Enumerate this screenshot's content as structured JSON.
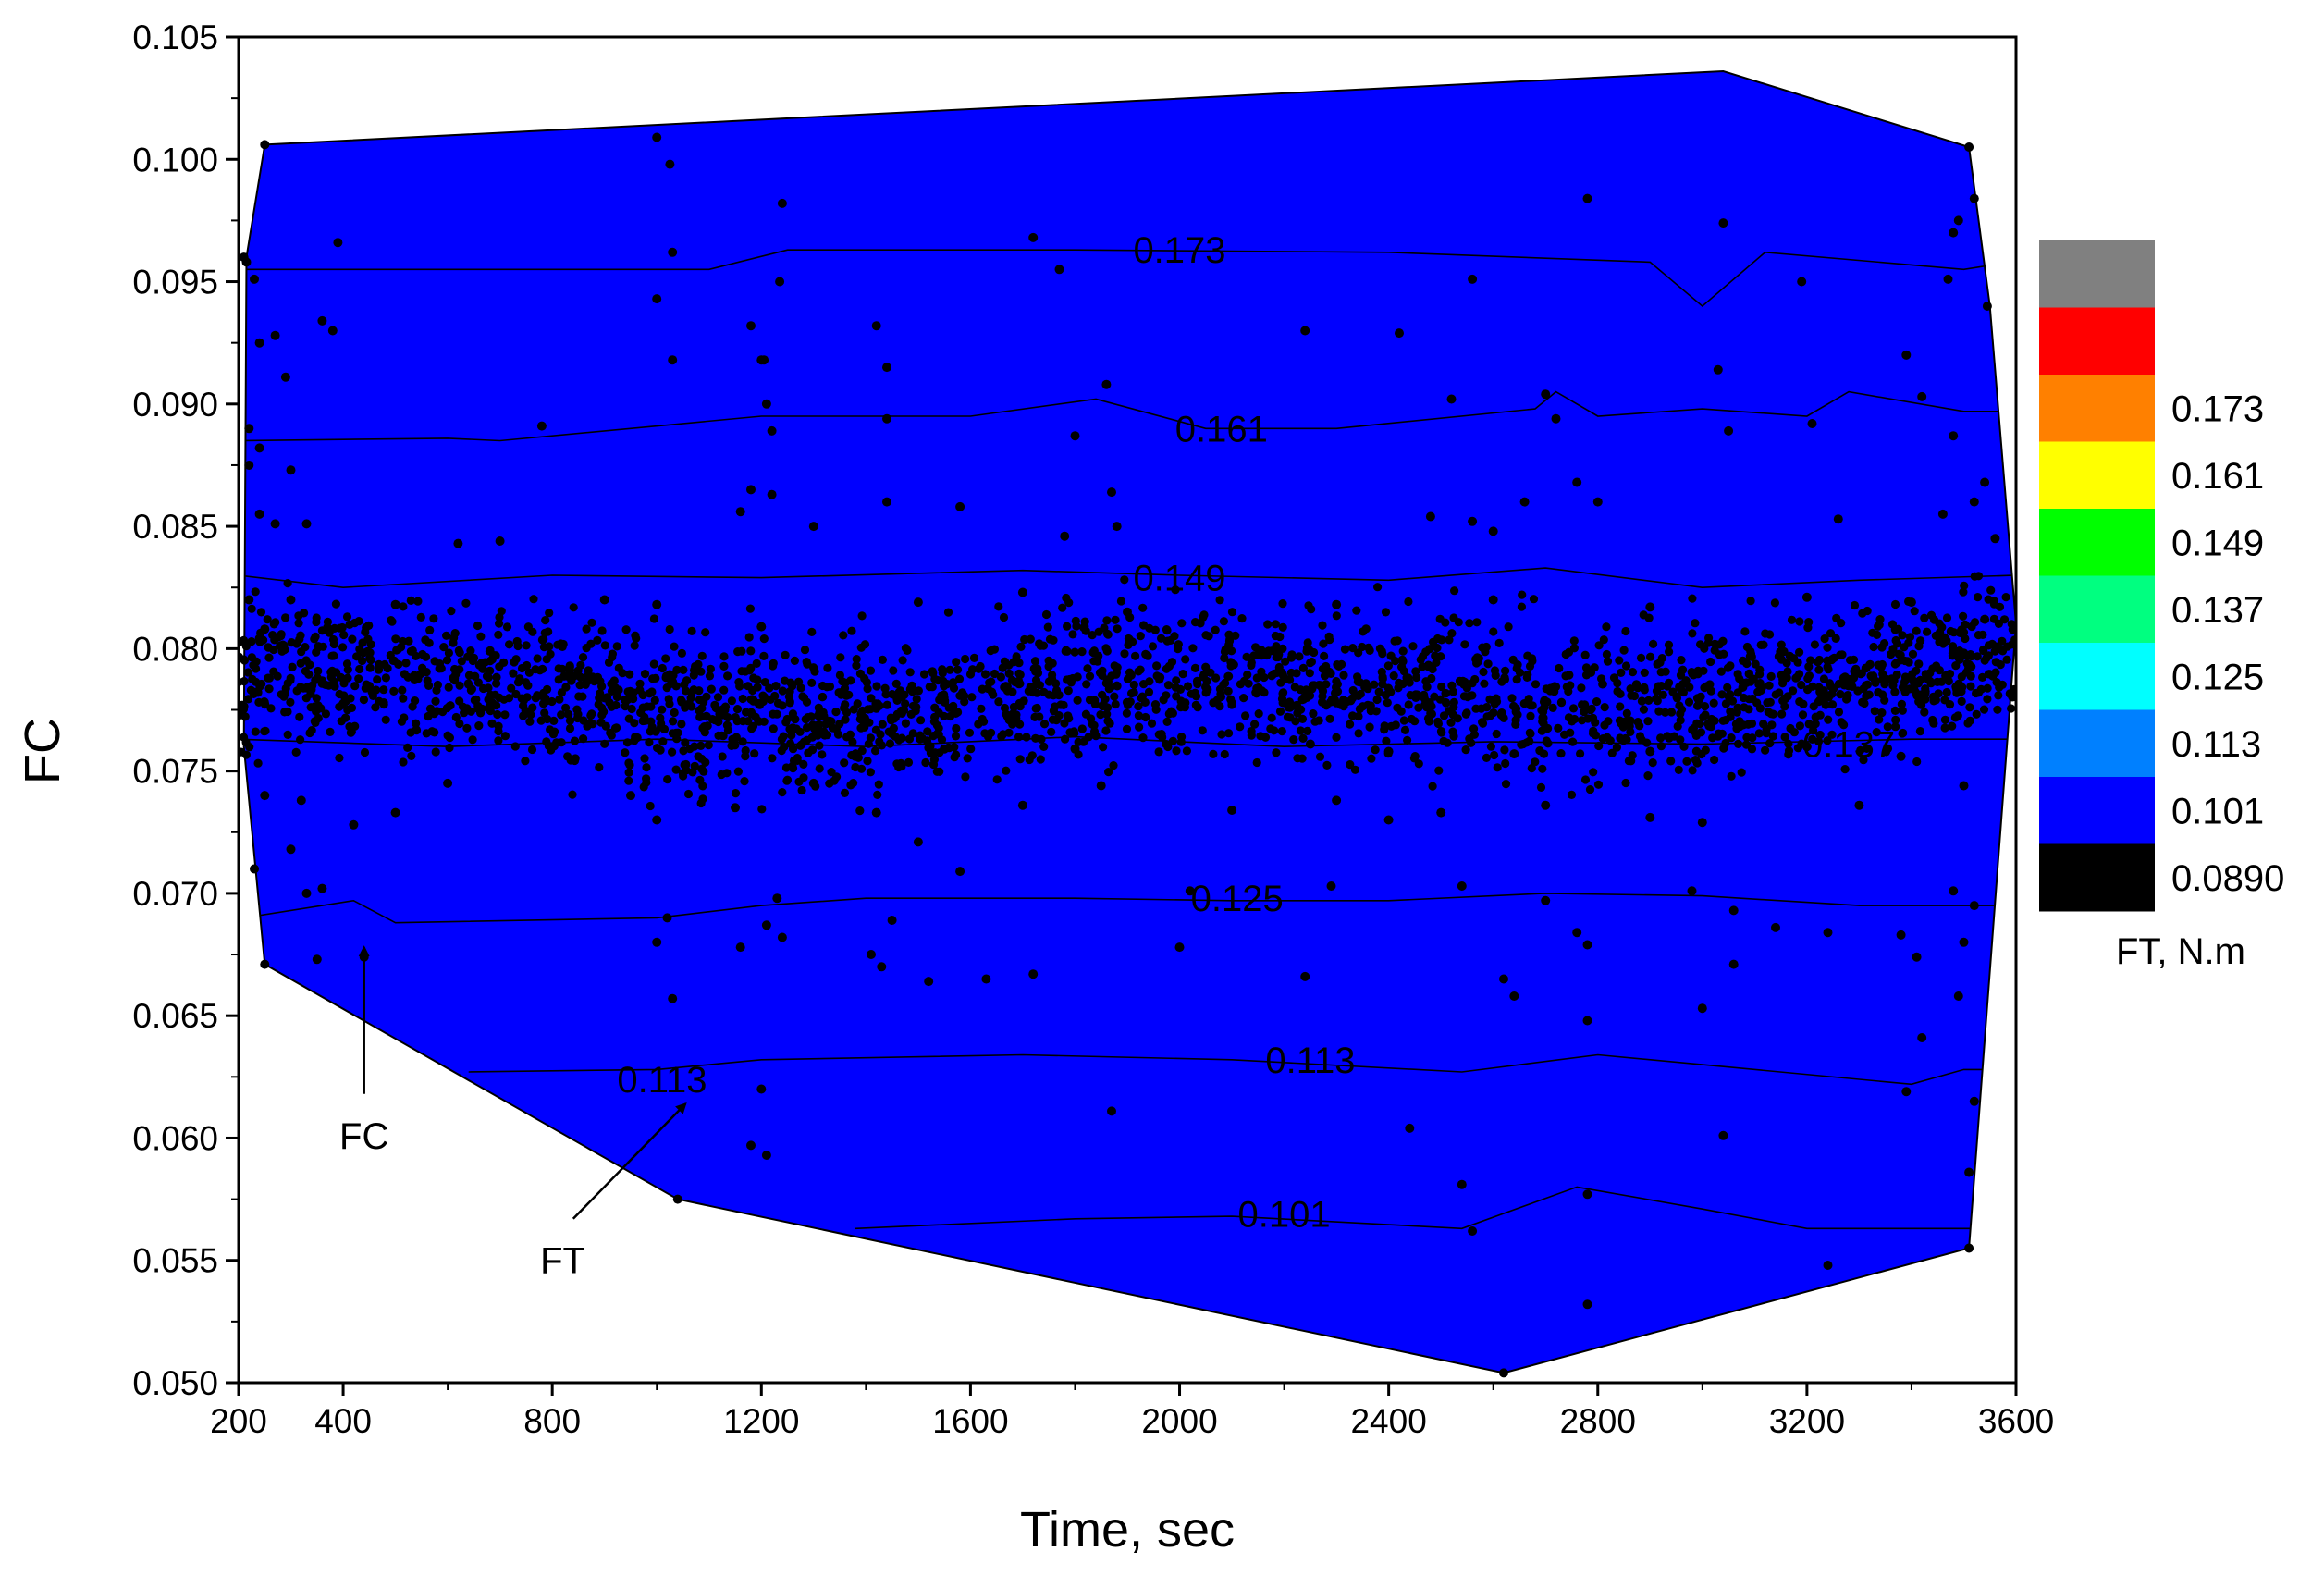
{
  "chart_data": {
    "type": "contour",
    "xlabel": "Time, sec",
    "ylabel": "FC",
    "xlim": [
      200,
      3600
    ],
    "ylim": [
      0.05,
      0.105
    ],
    "x_ticks": [
      200,
      400,
      800,
      1200,
      1600,
      2000,
      2400,
      2800,
      3200,
      3600
    ],
    "x_tick_labels": [
      "200",
      "400",
      "800",
      "1200",
      "1600",
      "2000",
      "2400",
      "2800",
      "3200",
      "3600"
    ],
    "y_ticks": [
      0.05,
      0.055,
      0.06,
      0.065,
      0.07,
      0.075,
      0.08,
      0.085,
      0.09,
      0.095,
      0.1,
      0.105
    ],
    "y_tick_labels": [
      "0.050",
      "0.055",
      "0.060",
      "0.065",
      "0.070",
      "0.075",
      "0.080",
      "0.085",
      "0.090",
      "0.095",
      "0.100",
      "0.105"
    ],
    "levels": [
      {
        "label": "0.0890",
        "color": "#000000"
      },
      {
        "label": "0.101",
        "color": "#0000ff"
      },
      {
        "label": "0.113",
        "color": "#0080ff"
      },
      {
        "label": "0.125",
        "color": "#00ffff"
      },
      {
        "label": "0.137",
        "color": "#00ff80"
      },
      {
        "label": "0.149",
        "color": "#00ff00"
      },
      {
        "label": "0.161",
        "color": "#ffff00"
      },
      {
        "label": "0.173",
        "color": "#ff8000"
      },
      {
        "label": "",
        "color": "#ff0000"
      },
      {
        "label": "",
        "color": "#808080"
      }
    ],
    "colorbar_title": "FT, N.m",
    "outline": [
      [
        250,
        0.1006
      ],
      [
        3040,
        0.1036
      ],
      [
        3510,
        0.1005
      ],
      [
        3550,
        0.094
      ],
      [
        3600,
        0.081
      ],
      [
        3510,
        0.0555
      ],
      [
        2620,
        0.0504
      ],
      [
        1040,
        0.0575
      ],
      [
        250,
        0.0671
      ],
      [
        210,
        0.076
      ],
      [
        215,
        0.096
      ]
    ],
    "bands": [
      {
        "color": "#ff0000",
        "upper": [
          [
            250,
            0.1006
          ],
          [
            3040,
            0.1036
          ],
          [
            3510,
            0.1005
          ],
          [
            3550,
            0.094
          ]
        ],
        "lower": [
          [
            200,
            0.0955
          ],
          [
            800,
            0.0955
          ],
          [
            1100,
            0.0955
          ],
          [
            1250,
            0.0963
          ],
          [
            1800,
            0.0963
          ],
          [
            2400,
            0.0962
          ],
          [
            2900,
            0.0958
          ],
          [
            3000,
            0.094
          ],
          [
            3120,
            0.0962
          ],
          [
            3500,
            0.0955
          ],
          [
            3560,
            0.0957
          ]
        ]
      },
      {
        "color": "#ff8000",
        "lower": [
          [
            200,
            0.0885
          ],
          [
            600,
            0.0886
          ],
          [
            700,
            0.0885
          ],
          [
            1200,
            0.0895
          ],
          [
            1600,
            0.0895
          ],
          [
            1840,
            0.0902
          ],
          [
            2050,
            0.089
          ],
          [
            2300,
            0.089
          ],
          [
            2680,
            0.0898
          ],
          [
            2720,
            0.0905
          ],
          [
            2800,
            0.0895
          ],
          [
            3000,
            0.0898
          ],
          [
            3200,
            0.0895
          ],
          [
            3280,
            0.0905
          ],
          [
            3500,
            0.0897
          ],
          [
            3580,
            0.0897
          ]
        ]
      },
      {
        "color": "#ffff00",
        "lower": [
          [
            200,
            0.083
          ],
          [
            400,
            0.0825
          ],
          [
            800,
            0.083
          ],
          [
            1200,
            0.0829
          ],
          [
            1700,
            0.0832
          ],
          [
            2000,
            0.083
          ],
          [
            2400,
            0.0828
          ],
          [
            2700,
            0.0833
          ],
          [
            3000,
            0.0825
          ],
          [
            3300,
            0.0828
          ],
          [
            3600,
            0.083
          ]
        ]
      },
      {
        "color": "#00ff00",
        "lower": [
          [
            200,
            0.0763
          ],
          [
            600,
            0.076
          ],
          [
            1000,
            0.0763
          ],
          [
            1400,
            0.076
          ],
          [
            1800,
            0.0764
          ],
          [
            2200,
            0.076
          ],
          [
            2600,
            0.0762
          ],
          [
            3000,
            0.0761
          ],
          [
            3400,
            0.0763
          ],
          [
            3600,
            0.0763
          ]
        ]
      },
      {
        "color": "#00ff80",
        "lower": [
          [
            210,
            0.069
          ],
          [
            420,
            0.0697
          ],
          [
            500,
            0.0688
          ],
          [
            1000,
            0.069
          ],
          [
            1200,
            0.0695
          ],
          [
            1400,
            0.0698
          ],
          [
            1800,
            0.0698
          ],
          [
            2100,
            0.0697
          ],
          [
            2400,
            0.0697
          ],
          [
            2700,
            0.07
          ],
          [
            3000,
            0.0699
          ],
          [
            3300,
            0.0695
          ],
          [
            3560,
            0.0695
          ]
        ]
      },
      {
        "color": "#00ffff",
        "lower": [
          [
            640,
            0.0627
          ],
          [
            1000,
            0.0628
          ],
          [
            1200,
            0.0632
          ],
          [
            1700,
            0.0634
          ],
          [
            2100,
            0.0632
          ],
          [
            2540,
            0.0627
          ],
          [
            2800,
            0.0634
          ],
          [
            3000,
            0.063
          ],
          [
            3400,
            0.0622
          ],
          [
            3500,
            0.0628
          ],
          [
            3540,
            0.0628
          ]
        ]
      },
      {
        "color": "#0080ff",
        "lower": [
          [
            1380,
            0.0563
          ],
          [
            1800,
            0.0567
          ],
          [
            2100,
            0.0568
          ],
          [
            2540,
            0.0563
          ],
          [
            2760,
            0.058
          ],
          [
            3000,
            0.0571
          ],
          [
            3200,
            0.0563
          ],
          [
            3520,
            0.0563
          ]
        ]
      },
      {
        "color": "#0000ff",
        "lower": null
      }
    ],
    "contour_labels": [
      {
        "text": "0.173",
        "x": 2000,
        "y": 0.0963
      },
      {
        "text": "0.161",
        "x": 2080,
        "y": 0.089
      },
      {
        "text": "0.149",
        "x": 2000,
        "y": 0.0829
      },
      {
        "text": "0.137",
        "x": 3280,
        "y": 0.0761
      },
      {
        "text": "0.125",
        "x": 2110,
        "y": 0.0698
      },
      {
        "text": "0.113",
        "x": 1010,
        "y": 0.0624
      },
      {
        "text": "0.113",
        "x": 2250,
        "y": 0.0632
      },
      {
        "text": "0.101",
        "x": 2200,
        "y": 0.0569
      }
    ],
    "annotations": [
      {
        "text": "FC",
        "label_at": [
          440,
          0.0601
        ],
        "arrow_from": [
          440,
          0.0618
        ],
        "arrow_to": [
          440,
          0.0678
        ]
      },
      {
        "text": "FT",
        "label_at": [
          820,
          0.055
        ],
        "arrow_from": [
          840,
          0.0567
        ],
        "arrow_to": [
          1055,
          0.0614
        ]
      }
    ],
    "scatter": {
      "name": "FC",
      "color": "#000000",
      "points": [
        [
          250,
          0.1006
        ],
        [
          1000,
          0.1009
        ],
        [
          1025,
          0.0998
        ],
        [
          1240,
          0.0982
        ],
        [
          2780,
          0.0984
        ],
        [
          3040,
          0.0974
        ],
        [
          3510,
          0.1005
        ],
        [
          3520,
          0.0984
        ],
        [
          3480,
          0.097
        ],
        [
          3490,
          0.0975
        ],
        [
          390,
          0.0966
        ],
        [
          1030,
          0.0962
        ],
        [
          1720,
          0.0968
        ],
        [
          1770,
          0.0955
        ],
        [
          1235,
          0.095
        ],
        [
          2560,
          0.0951
        ],
        [
          3190,
          0.095
        ],
        [
          3470,
          0.0951
        ],
        [
          3545,
          0.094
        ],
        [
          210,
          0.096
        ],
        [
          215,
          0.0958
        ],
        [
          230,
          0.0951
        ],
        [
          240,
          0.0925
        ],
        [
          270,
          0.0928
        ],
        [
          290,
          0.0911
        ],
        [
          360,
          0.0934
        ],
        [
          380,
          0.093
        ],
        [
          1000,
          0.0943
        ],
        [
          1030,
          0.0918
        ],
        [
          1180,
          0.0932
        ],
        [
          1200,
          0.0918
        ],
        [
          1205,
          0.0918
        ],
        [
          1420,
          0.0932
        ],
        [
          1440,
          0.0915
        ],
        [
          1860,
          0.0908
        ],
        [
          2240,
          0.093
        ],
        [
          2420,
          0.0929
        ],
        [
          2700,
          0.0904
        ],
        [
          3030,
          0.0914
        ],
        [
          3390,
          0.092
        ],
        [
          3420,
          0.0903
        ],
        [
          220,
          0.089
        ],
        [
          240,
          0.0882
        ],
        [
          300,
          0.0873
        ],
        [
          780,
          0.0891
        ],
        [
          1210,
          0.09
        ],
        [
          1220,
          0.0889
        ],
        [
          1440,
          0.0894
        ],
        [
          1800,
          0.0887
        ],
        [
          2520,
          0.0902
        ],
        [
          2720,
          0.0894
        ],
        [
          3050,
          0.0889
        ],
        [
          3210,
          0.0892
        ],
        [
          3480,
          0.0887
        ],
        [
          220,
          0.0875
        ],
        [
          240,
          0.0855
        ],
        [
          270,
          0.0851
        ],
        [
          330,
          0.0851
        ],
        [
          620,
          0.0843
        ],
        [
          700,
          0.0844
        ],
        [
          1160,
          0.0856
        ],
        [
          1180,
          0.0865
        ],
        [
          1220,
          0.0863
        ],
        [
          1300,
          0.085
        ],
        [
          1440,
          0.086
        ],
        [
          1580,
          0.0858
        ],
        [
          1780,
          0.0846
        ],
        [
          1870,
          0.0864
        ],
        [
          1880,
          0.085
        ],
        [
          2480,
          0.0854
        ],
        [
          2560,
          0.0852
        ],
        [
          2600,
          0.0848
        ],
        [
          2660,
          0.086
        ],
        [
          2760,
          0.0868
        ],
        [
          2800,
          0.086
        ],
        [
          3260,
          0.0853
        ],
        [
          3460,
          0.0855
        ],
        [
          3520,
          0.086
        ],
        [
          3540,
          0.0868
        ],
        [
          3560,
          0.0845
        ],
        [
          220,
          0.082
        ],
        [
          250,
          0.0808
        ],
        [
          300,
          0.082
        ],
        [
          500,
          0.0818
        ],
        [
          900,
          0.082
        ],
        [
          1000,
          0.0818
        ],
        [
          1200,
          0.0809
        ],
        [
          1500,
          0.0819
        ],
        [
          1700,
          0.0823
        ],
        [
          1900,
          0.0815
        ],
        [
          2300,
          0.0818
        ],
        [
          2600,
          0.082
        ],
        [
          2900,
          0.0817
        ],
        [
          3200,
          0.0821
        ],
        [
          3400,
          0.0819
        ],
        [
          3540,
          0.0812
        ],
        [
          1380,
          0.0756
        ],
        [
          1550,
          0.0759
        ],
        [
          1800,
          0.0759
        ],
        [
          2250,
          0.0761
        ],
        [
          2400,
          0.0758
        ],
        [
          2640,
          0.0757
        ],
        [
          2900,
          0.0758
        ],
        [
          3200,
          0.076
        ],
        [
          3380,
          0.0756
        ],
        [
          250,
          0.074
        ],
        [
          320,
          0.0738
        ],
        [
          420,
          0.0728
        ],
        [
          500,
          0.0733
        ],
        [
          600,
          0.0745
        ],
        [
          950,
          0.074
        ],
        [
          1000,
          0.073
        ],
        [
          1150,
          0.0735
        ],
        [
          1300,
          0.0745
        ],
        [
          1420,
          0.0733
        ],
        [
          1500,
          0.0721
        ],
        [
          1700,
          0.0736
        ],
        [
          1850,
          0.0744
        ],
        [
          2100,
          0.0734
        ],
        [
          2300,
          0.0738
        ],
        [
          2400,
          0.073
        ],
        [
          2500,
          0.0733
        ],
        [
          2700,
          0.0736
        ],
        [
          2900,
          0.0731
        ],
        [
          3000,
          0.0729
        ],
        [
          3300,
          0.0736
        ],
        [
          3500,
          0.0744
        ],
        [
          230,
          0.071
        ],
        [
          300,
          0.0718
        ],
        [
          330,
          0.07
        ],
        [
          360,
          0.0702
        ],
        [
          1020,
          0.069
        ],
        [
          1230,
          0.0698
        ],
        [
          1450,
          0.0689
        ],
        [
          1580,
          0.0709
        ],
        [
          2020,
          0.0701
        ],
        [
          2290,
          0.0703
        ],
        [
          2540,
          0.0703
        ],
        [
          2700,
          0.0697
        ],
        [
          2980,
          0.0701
        ],
        [
          3060,
          0.0693
        ],
        [
          3480,
          0.0701
        ],
        [
          3520,
          0.0695
        ],
        [
          250,
          0.0671
        ],
        [
          350,
          0.0673
        ],
        [
          440,
          0.0674
        ],
        [
          1000,
          0.068
        ],
        [
          1030,
          0.0657
        ],
        [
          1160,
          0.0678
        ],
        [
          1210,
          0.0687
        ],
        [
          1240,
          0.0682
        ],
        [
          1410,
          0.0675
        ],
        [
          1430,
          0.067
        ],
        [
          1520,
          0.0664
        ],
        [
          1630,
          0.0665
        ],
        [
          1720,
          0.0667
        ],
        [
          2000,
          0.0678
        ],
        [
          2240,
          0.0666
        ],
        [
          2620,
          0.0665
        ],
        [
          2640,
          0.0658
        ],
        [
          2760,
          0.0684
        ],
        [
          2780,
          0.0679
        ],
        [
          2780,
          0.0648
        ],
        [
          3000,
          0.0653
        ],
        [
          3060,
          0.0671
        ],
        [
          3140,
          0.0686
        ],
        [
          3240,
          0.0684
        ],
        [
          3380,
          0.0683
        ],
        [
          3410,
          0.0674
        ],
        [
          3420,
          0.0641
        ],
        [
          3490,
          0.0658
        ],
        [
          3500,
          0.068
        ],
        [
          1200,
          0.062
        ],
        [
          1180,
          0.0597
        ],
        [
          1210,
          0.0593
        ],
        [
          1870,
          0.0611
        ],
        [
          2440,
          0.0604
        ],
        [
          3040,
          0.0601
        ],
        [
          3390,
          0.0619
        ],
        [
          3520,
          0.0615
        ],
        [
          3510,
          0.0586
        ],
        [
          1040,
          0.0575
        ],
        [
          2540,
          0.0581
        ],
        [
          2560,
          0.0562
        ],
        [
          2780,
          0.0577
        ],
        [
          2780,
          0.0532
        ],
        [
          3240,
          0.0548
        ],
        [
          3510,
          0.0555
        ],
        [
          2620,
          0.0504
        ]
      ],
      "dense_cluster": {
        "x_range": [
          200,
          3600
        ],
        "y_center": 0.0785,
        "y_spread": 0.003,
        "count": 2600
      }
    }
  }
}
